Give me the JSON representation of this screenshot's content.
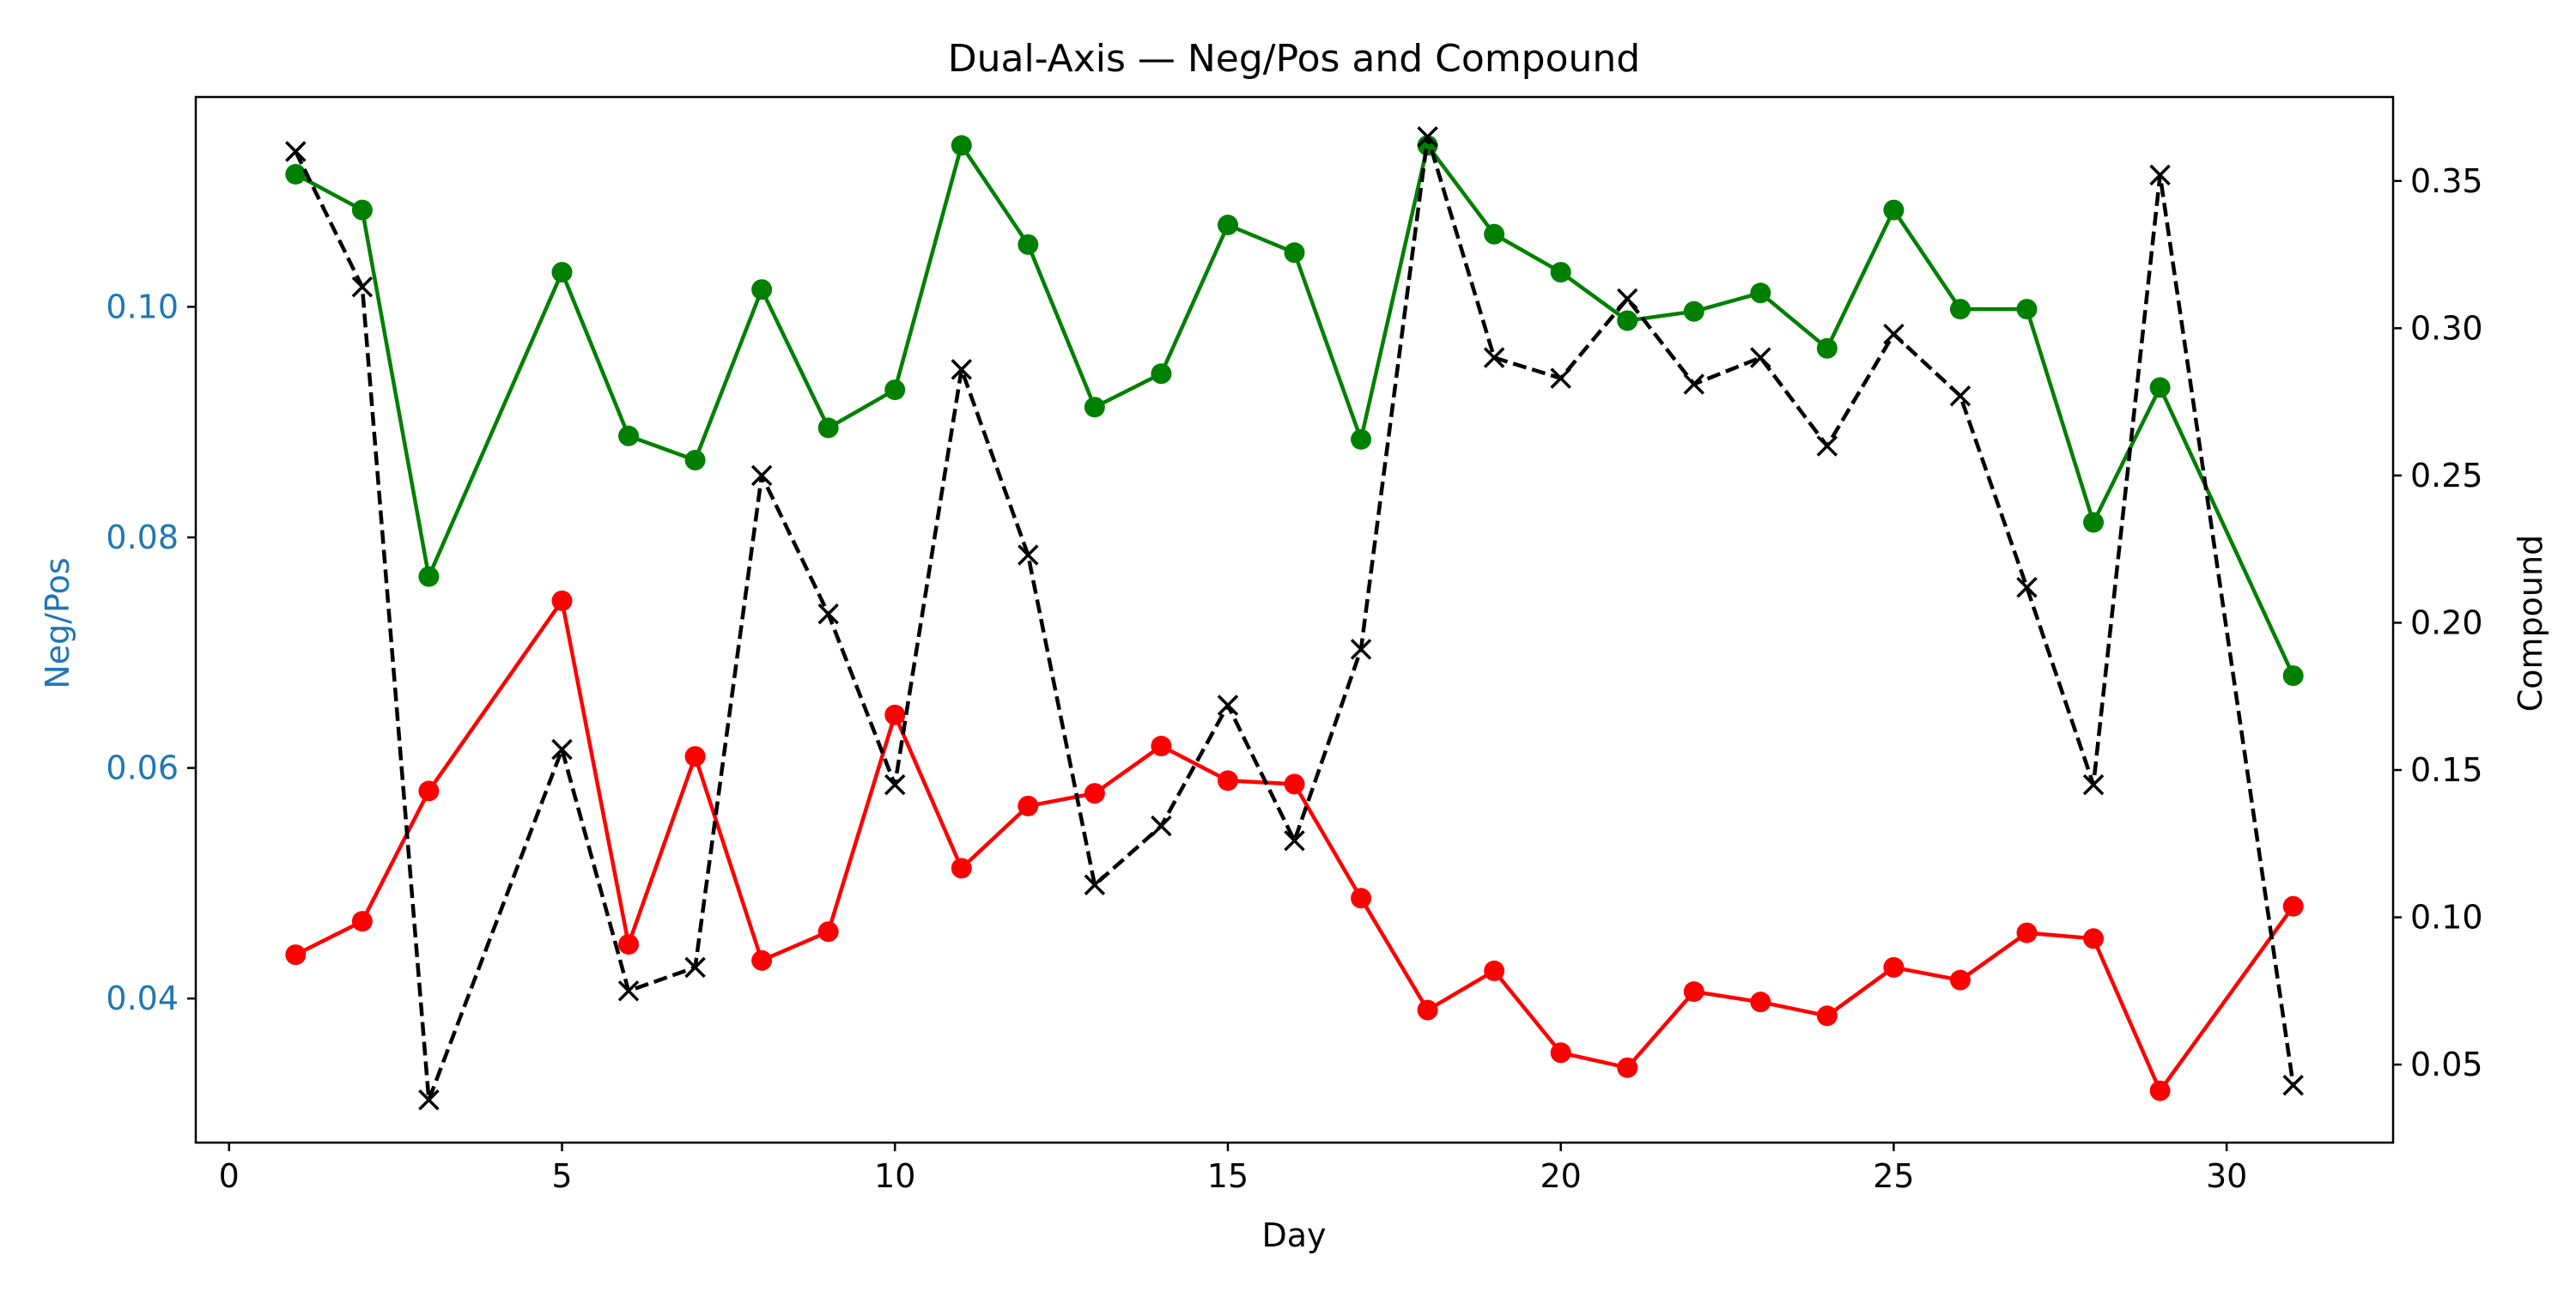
{
  "chart_data": {
    "type": "line",
    "title": "Dual-Axis — Neg/Pos and Compound",
    "xlabel": "Day",
    "ylabel_left": "Neg/Pos",
    "ylabel_right": "Compound",
    "xlim": [
      -0.5,
      32.5
    ],
    "ylim_left": [
      0.0275,
      0.1182
    ],
    "ylim_right": [
      0.0235,
      0.3785
    ],
    "xticks": [
      0,
      5,
      10,
      15,
      20,
      25,
      30
    ],
    "yticks_left": [
      0.04,
      0.06,
      0.08,
      0.1
    ],
    "yticks_left_labels": [
      "0.04",
      "0.06",
      "0.08",
      "0.10"
    ],
    "yticks_right": [
      0.05,
      0.1,
      0.15,
      0.2,
      0.25,
      0.3,
      0.35
    ],
    "yticks_right_labels": [
      "0.05",
      "0.10",
      "0.15",
      "0.20",
      "0.25",
      "0.30",
      "0.35"
    ],
    "grid": false,
    "legend": "none",
    "colors": {
      "neg": "#ff0000",
      "pos": "#008000",
      "compound": "#000000",
      "left_axis": "#1f77b4"
    },
    "x": [
      1,
      2,
      3,
      5,
      6,
      7,
      8,
      9,
      10,
      11,
      12,
      13,
      14,
      15,
      16,
      17,
      18,
      19,
      20,
      21,
      22,
      23,
      24,
      25,
      26,
      27,
      28,
      29,
      31
    ],
    "series": [
      {
        "key": "neg",
        "axis": "left",
        "marker": "circle",
        "linestyle": "solid",
        "values": [
          0.0438,
          0.0467,
          0.058,
          0.0745,
          0.0447,
          0.061,
          0.0433,
          0.0458,
          0.0646,
          0.0513,
          0.0567,
          0.0578,
          0.0619,
          0.0589,
          0.0586,
          0.0487,
          0.039,
          0.0424,
          0.0353,
          0.034,
          0.0406,
          0.0397,
          0.0385,
          0.0427,
          0.0416,
          0.0457,
          0.0452,
          0.032,
          0.048
        ]
      },
      {
        "key": "pos",
        "axis": "left",
        "marker": "circle",
        "linestyle": "solid",
        "values": [
          0.1115,
          0.1084,
          0.0766,
          0.103,
          0.0888,
          0.0867,
          0.1015,
          0.0895,
          0.0928,
          0.114,
          0.1054,
          0.0913,
          0.0942,
          0.1071,
          0.1047,
          0.0885,
          0.114,
          0.1063,
          0.103,
          0.0988,
          0.0996,
          0.1012,
          0.0964,
          0.1084,
          0.0998,
          0.0998,
          0.0813,
          0.093,
          0.068
        ]
      },
      {
        "key": "compound",
        "axis": "right",
        "marker": "x",
        "linestyle": "dashed",
        "values": [
          0.36,
          0.314,
          0.038,
          0.157,
          0.075,
          0.083,
          0.25,
          0.203,
          0.145,
          0.286,
          0.223,
          0.111,
          0.131,
          0.172,
          0.126,
          0.191,
          0.365,
          0.29,
          0.283,
          0.31,
          0.281,
          0.29,
          0.26,
          0.298,
          0.277,
          0.212,
          0.145,
          0.352,
          0.043
        ]
      }
    ]
  }
}
